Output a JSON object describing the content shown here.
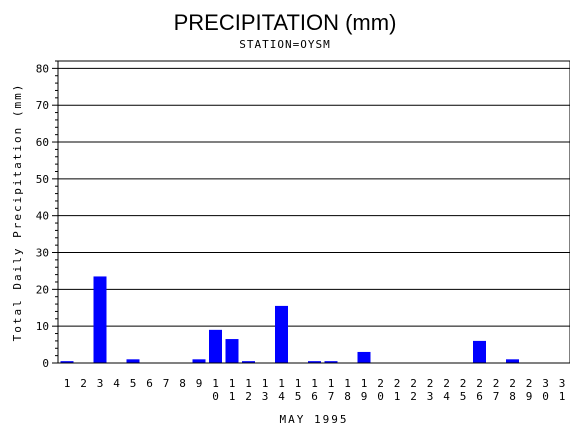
{
  "chart_data": {
    "type": "bar",
    "title": "PRECIPITATION (mm)",
    "subtitle": "STATION=OYSM",
    "xlabel": "MAY 1995",
    "ylabel": "Total Daily Precipitation (mm)",
    "ylim": [
      0,
      82
    ],
    "yticks": [
      0,
      10,
      20,
      30,
      40,
      50,
      60,
      70,
      80
    ],
    "grid": true,
    "bar_color": "#0000ff",
    "categories": [
      "1",
      "2",
      "3",
      "4",
      "5",
      "6",
      "7",
      "8",
      "9",
      "10",
      "11",
      "12",
      "13",
      "14",
      "15",
      "16",
      "17",
      "18",
      "19",
      "20",
      "21",
      "22",
      "23",
      "24",
      "25",
      "26",
      "27",
      "28",
      "29",
      "30",
      "31"
    ],
    "values": [
      0.5,
      0,
      23.5,
      0,
      1.0,
      0,
      0,
      0,
      1.0,
      9.0,
      6.5,
      0.5,
      0,
      15.5,
      0,
      0.5,
      0.5,
      0,
      3.0,
      0,
      0,
      0,
      0,
      0,
      0,
      6.0,
      0,
      1.0,
      0,
      0,
      0
    ]
  }
}
